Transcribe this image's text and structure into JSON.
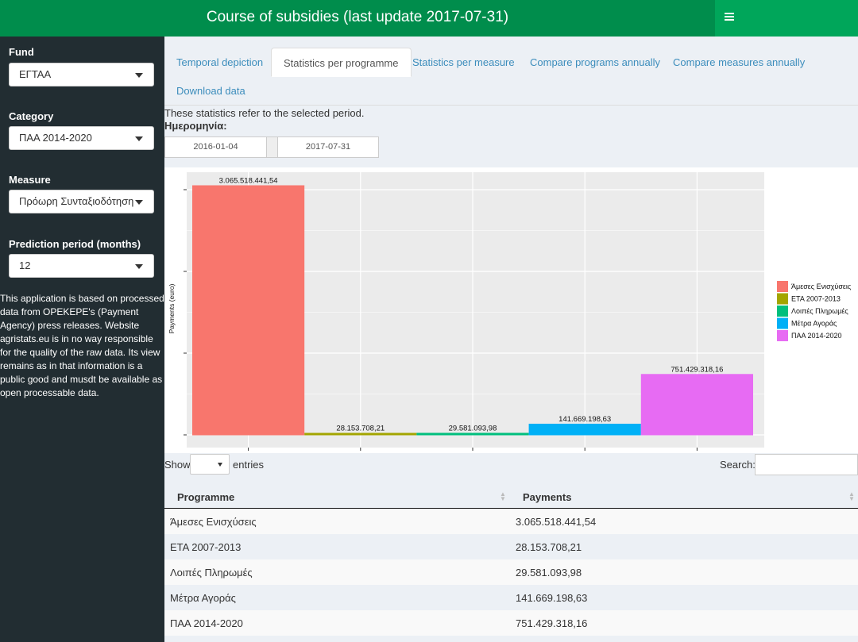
{
  "header": {
    "title": "Course of subsidies (last update 2017-07-31)"
  },
  "sidebar": {
    "fund": {
      "label": "Fund",
      "value": "ΕΓΤΑΑ"
    },
    "category": {
      "label": "Category",
      "value": "ΠΑΑ 2014-2020"
    },
    "measure": {
      "label": "Measure",
      "value": "Πρόωρη Συνταξιοδότηση"
    },
    "prediction": {
      "label": "Prediction period (months)",
      "value": "12"
    },
    "note": "This application is based on processed data from OPEKEPE's (Payment Agency) press releases. Website agristats.eu is in no way responsible for the quality of the raw data. Its view remains as in that information is a public good and musdt be available as open processable data."
  },
  "tabs": [
    {
      "label": "Temporal depiction"
    },
    {
      "label": "Statistics per programme"
    },
    {
      "label": "Statistics per measure"
    },
    {
      "label": "Compare programs annually"
    },
    {
      "label": "Compare measures annually"
    },
    {
      "label": "Download data"
    }
  ],
  "main": {
    "info": "These statistics refer to the selected period.",
    "date_label": "Ημερομηνία:",
    "date_from": "2016-01-04",
    "date_to": "2017-07-31"
  },
  "chart_data": {
    "type": "bar",
    "categories": [
      "Άμεσες Ενισχύσεις",
      "ΕΤΑ 2007-2013",
      "Λοιπές Πληρωμές",
      "Μέτρα Αγοράς",
      "ΠΑΑ 2014-2020"
    ],
    "values": [
      3065518441.54,
      28153708.21,
      29581093.98,
      141669198.63,
      751429318.16
    ],
    "value_labels": [
      "3.065.518.441,54",
      "28.153.708,21",
      "29.581.093,98",
      "141.669.198,63",
      "751.429.318,16"
    ],
    "colors": [
      "#f8766d",
      "#a3a500",
      "#00bf7d",
      "#00b0f6",
      "#e76bf3"
    ],
    "ylabel": "Payments (euro)",
    "xlabel": "",
    "legend": "right",
    "grid": true
  },
  "table": {
    "show_label": "Show",
    "entries_label": "entries",
    "search_label": "Search:",
    "columns": [
      "Programme",
      "Payments"
    ],
    "rows": [
      [
        "Άμεσες Ενισχύσεις",
        "3.065.518.441,54"
      ],
      [
        "ΕΤΑ 2007-2013",
        "28.153.708,21"
      ],
      [
        "Λοιπές Πληρωμές",
        "29.581.093,98"
      ],
      [
        "Μέτρα Αγοράς",
        "141.669.198,63"
      ],
      [
        "ΠΑΑ 2014-2020",
        "751.429.318,16"
      ]
    ]
  }
}
